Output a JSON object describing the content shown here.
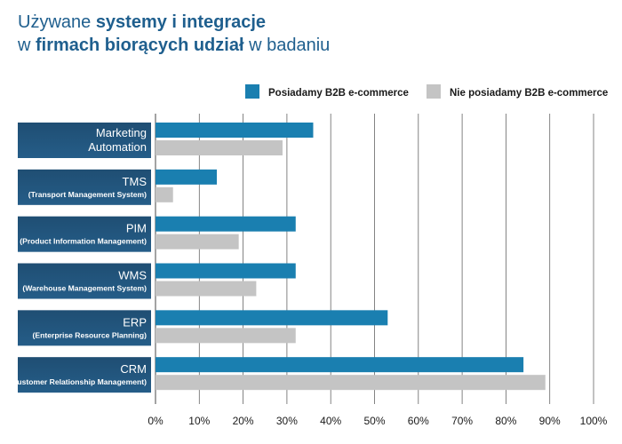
{
  "title": {
    "line1": [
      {
        "text": "Używane ",
        "bold": false
      },
      {
        "text": "systemy i integracje",
        "bold": true
      }
    ],
    "line2": [
      {
        "text": "w ",
        "bold": false
      },
      {
        "text": "firmach biorących udział",
        "bold": true
      },
      {
        "text": " w badaniu",
        "bold": false
      }
    ]
  },
  "colors": {
    "series_b2b": "#1a7fb0",
    "series_no_b2b": "#c4c4c4",
    "label_box_top": "#1f4e73",
    "label_box_bottom": "#255d88",
    "grid": "#666666",
    "text_dark": "#1a1a1a",
    "label_text": "#ffffff"
  },
  "chart_data": {
    "type": "bar",
    "orientation": "horizontal",
    "categories": [
      {
        "main": "Marketing",
        "sub": "Automation",
        "sub_large": true
      },
      {
        "main": "TMS",
        "sub": "(Transport Management System)",
        "sub_large": false
      },
      {
        "main": "PIM",
        "sub": "(Product Information Management)",
        "sub_large": false
      },
      {
        "main": "WMS",
        "sub": "(Warehouse Management System)",
        "sub_large": false
      },
      {
        "main": "ERP",
        "sub": "(Enterprise Resource Planning)",
        "sub_large": false
      },
      {
        "main": "CRM",
        "sub": "(Customer Relationship Management)",
        "sub_large": false
      }
    ],
    "series": [
      {
        "name": "Posiadamy B2B e-commerce",
        "values": [
          36,
          14,
          32,
          32,
          53,
          84
        ]
      },
      {
        "name": "Nie posiadamy B2B e-commerce",
        "values": [
          29,
          4,
          19,
          23,
          32,
          89
        ]
      }
    ],
    "xlim": [
      0,
      100
    ],
    "xticks": [
      0,
      10,
      20,
      30,
      40,
      50,
      60,
      70,
      80,
      90,
      100
    ],
    "tick_suffix": "%",
    "grid": true,
    "legend_position": "top-right"
  }
}
